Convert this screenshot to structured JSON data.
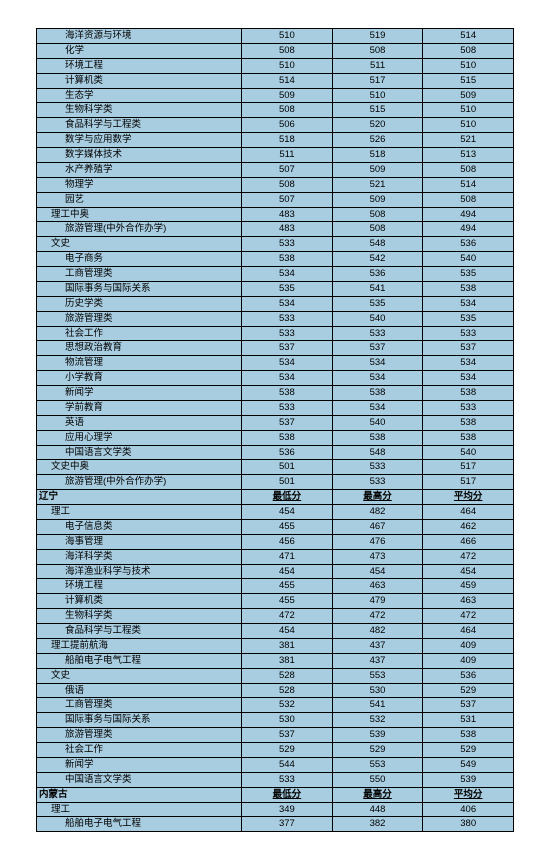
{
  "table": {
    "background_color": "#a8cde0",
    "border_color": "#000000",
    "font_size": 9.5,
    "columns": [
      "name",
      "min",
      "max",
      "avg"
    ],
    "rows": [
      {
        "name": "海洋资源与环境",
        "indent": 2,
        "min": "510",
        "max": "519",
        "avg": "514"
      },
      {
        "name": "化学",
        "indent": 2,
        "min": "508",
        "max": "508",
        "avg": "508"
      },
      {
        "name": "环境工程",
        "indent": 2,
        "min": "510",
        "max": "511",
        "avg": "510"
      },
      {
        "name": "计算机类",
        "indent": 2,
        "min": "514",
        "max": "517",
        "avg": "515"
      },
      {
        "name": "生态学",
        "indent": 2,
        "min": "509",
        "max": "510",
        "avg": "509"
      },
      {
        "name": "生物科学类",
        "indent": 2,
        "min": "508",
        "max": "515",
        "avg": "510"
      },
      {
        "name": "食品科学与工程类",
        "indent": 2,
        "min": "506",
        "max": "520",
        "avg": "510"
      },
      {
        "name": "数学与应用数学",
        "indent": 2,
        "min": "518",
        "max": "526",
        "avg": "521"
      },
      {
        "name": "数字媒体技术",
        "indent": 2,
        "min": "511",
        "max": "518",
        "avg": "513"
      },
      {
        "name": "水产养殖学",
        "indent": 2,
        "min": "507",
        "max": "509",
        "avg": "508"
      },
      {
        "name": "物理学",
        "indent": 2,
        "min": "508",
        "max": "521",
        "avg": "514"
      },
      {
        "name": "园艺",
        "indent": 2,
        "min": "507",
        "max": "509",
        "avg": "508"
      },
      {
        "name": "理工中奥",
        "indent": 1,
        "min": "483",
        "max": "508",
        "avg": "494"
      },
      {
        "name": "旅游管理(中外合作办学)",
        "indent": 2,
        "min": "483",
        "max": "508",
        "avg": "494"
      },
      {
        "name": "文史",
        "indent": 1,
        "min": "533",
        "max": "548",
        "avg": "536"
      },
      {
        "name": "电子商务",
        "indent": 2,
        "min": "538",
        "max": "542",
        "avg": "540"
      },
      {
        "name": "工商管理类",
        "indent": 2,
        "min": "534",
        "max": "536",
        "avg": "535"
      },
      {
        "name": "国际事务与国际关系",
        "indent": 2,
        "min": "535",
        "max": "541",
        "avg": "538"
      },
      {
        "name": "历史学类",
        "indent": 2,
        "min": "534",
        "max": "535",
        "avg": "534"
      },
      {
        "name": "旅游管理类",
        "indent": 2,
        "min": "533",
        "max": "540",
        "avg": "535"
      },
      {
        "name": "社会工作",
        "indent": 2,
        "min": "533",
        "max": "533",
        "avg": "533"
      },
      {
        "name": "思想政治教育",
        "indent": 2,
        "min": "537",
        "max": "537",
        "avg": "537"
      },
      {
        "name": "物流管理",
        "indent": 2,
        "min": "534",
        "max": "534",
        "avg": "534"
      },
      {
        "name": "小学教育",
        "indent": 2,
        "min": "534",
        "max": "534",
        "avg": "534"
      },
      {
        "name": "新闻学",
        "indent": 2,
        "min": "538",
        "max": "538",
        "avg": "538"
      },
      {
        "name": "学前教育",
        "indent": 2,
        "min": "533",
        "max": "534",
        "avg": "533"
      },
      {
        "name": "英语",
        "indent": 2,
        "min": "537",
        "max": "540",
        "avg": "538"
      },
      {
        "name": "应用心理学",
        "indent": 2,
        "min": "538",
        "max": "538",
        "avg": "538"
      },
      {
        "name": "中国语言文学类",
        "indent": 2,
        "min": "536",
        "max": "548",
        "avg": "540"
      },
      {
        "name": "文史中奥",
        "indent": 1,
        "min": "501",
        "max": "533",
        "avg": "517"
      },
      {
        "name": "旅游管理(中外合作办学)",
        "indent": 2,
        "min": "501",
        "max": "533",
        "avg": "517"
      },
      {
        "name": "辽宁",
        "indent": 0,
        "header": true,
        "min": "最低分",
        "max": "最高分",
        "avg": "平均分"
      },
      {
        "name": "理工",
        "indent": 1,
        "min": "454",
        "max": "482",
        "avg": "464"
      },
      {
        "name": "电子信息类",
        "indent": 2,
        "min": "455",
        "max": "467",
        "avg": "462"
      },
      {
        "name": "海事管理",
        "indent": 2,
        "min": "456",
        "max": "476",
        "avg": "466"
      },
      {
        "name": "海洋科学类",
        "indent": 2,
        "min": "471",
        "max": "473",
        "avg": "472"
      },
      {
        "name": "海洋渔业科学与技术",
        "indent": 2,
        "min": "454",
        "max": "454",
        "avg": "454"
      },
      {
        "name": "环境工程",
        "indent": 2,
        "min": "455",
        "max": "463",
        "avg": "459"
      },
      {
        "name": "计算机类",
        "indent": 2,
        "min": "455",
        "max": "479",
        "avg": "463"
      },
      {
        "name": "生物科学类",
        "indent": 2,
        "min": "472",
        "max": "472",
        "avg": "472"
      },
      {
        "name": "食品科学与工程类",
        "indent": 2,
        "min": "454",
        "max": "482",
        "avg": "464"
      },
      {
        "name": "理工提前航海",
        "indent": 1,
        "min": "381",
        "max": "437",
        "avg": "409"
      },
      {
        "name": "船舶电子电气工程",
        "indent": 2,
        "min": "381",
        "max": "437",
        "avg": "409"
      },
      {
        "name": "文史",
        "indent": 1,
        "min": "528",
        "max": "553",
        "avg": "536"
      },
      {
        "name": "俄语",
        "indent": 2,
        "min": "528",
        "max": "530",
        "avg": "529"
      },
      {
        "name": "工商管理类",
        "indent": 2,
        "min": "532",
        "max": "541",
        "avg": "537"
      },
      {
        "name": "国际事务与国际关系",
        "indent": 2,
        "min": "530",
        "max": "532",
        "avg": "531"
      },
      {
        "name": "旅游管理类",
        "indent": 2,
        "min": "537",
        "max": "539",
        "avg": "538"
      },
      {
        "name": "社会工作",
        "indent": 2,
        "min": "529",
        "max": "529",
        "avg": "529"
      },
      {
        "name": "新闻学",
        "indent": 2,
        "min": "544",
        "max": "553",
        "avg": "549"
      },
      {
        "name": "中国语言文学类",
        "indent": 2,
        "min": "533",
        "max": "550",
        "avg": "539"
      },
      {
        "name": "内蒙古",
        "indent": 0,
        "header": true,
        "min": "最低分",
        "max": "最高分",
        "avg": "平均分"
      },
      {
        "name": "理工",
        "indent": 1,
        "min": "349",
        "max": "448",
        "avg": "406"
      },
      {
        "name": "船舶电子电气工程",
        "indent": 2,
        "min": "377",
        "max": "382",
        "avg": "380"
      }
    ]
  }
}
